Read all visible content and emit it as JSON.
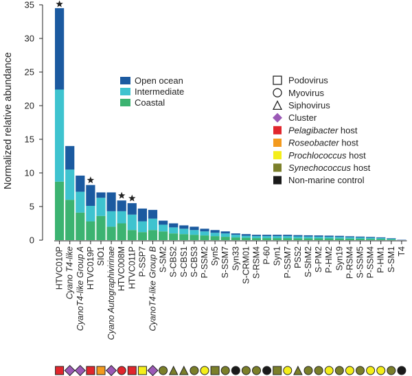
{
  "chart_data": {
    "type": "bar",
    "stacked": true,
    "title": "",
    "xlabel": "",
    "ylabel": "Normalized relative abundance",
    "ylim": [
      0,
      35
    ],
    "yticks": [
      0,
      5,
      10,
      15,
      20,
      25,
      30,
      35
    ],
    "grid": false,
    "legend_position": "top-center",
    "categories": [
      {
        "text": "HTVC010P",
        "italic": false
      },
      {
        "text": "Cyano T4-like",
        "italic": true
      },
      {
        "text": "CyanoT4-like Group A",
        "italic": true
      },
      {
        "text": "HTVC019P",
        "italic": false
      },
      {
        "text": "SIO1",
        "italic": false
      },
      {
        "text": "Cyano Autographivirinae",
        "italic": true
      },
      {
        "text": "HTVC008M",
        "italic": false
      },
      {
        "text": "HTVC011P",
        "italic": false
      },
      {
        "text": "P-SSP7",
        "italic": false
      },
      {
        "text": "CyanoT4-like Group B",
        "italic": true
      },
      {
        "text": "S-SM2",
        "italic": false
      },
      {
        "text": "S-CBS2",
        "italic": false
      },
      {
        "text": "S-CBS1",
        "italic": false
      },
      {
        "text": "S-CBS3",
        "italic": false
      },
      {
        "text": "P-SSM2",
        "italic": false
      },
      {
        "text": "Syn5",
        "italic": false
      },
      {
        "text": "S-SSM7",
        "italic": false
      },
      {
        "text": "Syn33",
        "italic": false
      },
      {
        "text": "S-CRM01",
        "italic": false
      },
      {
        "text": "S-RSM4",
        "italic": false
      },
      {
        "text": "P-60",
        "italic": false
      },
      {
        "text": "Syn1",
        "italic": false
      },
      {
        "text": "P-SSM7",
        "italic": false
      },
      {
        "text": "PSS2",
        "italic": false
      },
      {
        "text": "S-ShM2",
        "italic": false
      },
      {
        "text": "S-PM2",
        "italic": false
      },
      {
        "text": "P-HM2",
        "italic": false
      },
      {
        "text": "Syn19",
        "italic": false
      },
      {
        "text": "P-RSM4",
        "italic": false
      },
      {
        "text": "S-SSM5",
        "italic": false
      },
      {
        "text": "P-SSM4",
        "italic": false
      },
      {
        "text": "P-HM1",
        "italic": false
      },
      {
        "text": "S-SM1",
        "italic": false
      },
      {
        "text": "T4",
        "italic": false
      }
    ],
    "series": [
      {
        "name": "Coastal",
        "color": "#3cb371",
        "values": [
          8.7,
          6.0,
          4.1,
          2.8,
          3.6,
          2.0,
          2.5,
          1.5,
          1.2,
          1.5,
          1.3,
          1.0,
          0.9,
          0.8,
          0.7,
          0.6,
          0.5,
          0.4,
          0.35,
          0.3,
          0.3,
          0.3,
          0.3,
          0.28,
          0.27,
          0.26,
          0.25,
          0.24,
          0.22,
          0.2,
          0.18,
          0.16,
          0.1,
          0.0
        ]
      },
      {
        "name": "Intermediate",
        "color": "#3ec3cf",
        "values": [
          13.7,
          4.5,
          3.1,
          2.3,
          2.7,
          2.3,
          1.8,
          2.3,
          1.6,
          1.7,
          1.0,
          0.9,
          0.8,
          0.7,
          0.6,
          0.5,
          0.5,
          0.4,
          0.3,
          0.3,
          0.3,
          0.3,
          0.3,
          0.28,
          0.27,
          0.26,
          0.25,
          0.24,
          0.22,
          0.2,
          0.18,
          0.16,
          0.1,
          0.0
        ]
      },
      {
        "name": "Open ocean",
        "color": "#1b5aa0",
        "values": [
          12.1,
          3.5,
          2.4,
          3.1,
          0.8,
          2.8,
          1.6,
          1.7,
          1.9,
          1.3,
          0.6,
          0.6,
          0.5,
          0.5,
          0.4,
          0.4,
          0.3,
          0.2,
          0.25,
          0.2,
          0.2,
          0.2,
          0.2,
          0.19,
          0.18,
          0.18,
          0.17,
          0.16,
          0.14,
          0.13,
          0.12,
          0.1,
          0.08,
          0.05
        ]
      }
    ],
    "stars_on": [
      0,
      3,
      6,
      7
    ],
    "bottom_markers": [
      {
        "shape": "square",
        "color": "#e1262d"
      },
      {
        "shape": "diamond",
        "color": "#9b59b6"
      },
      {
        "shape": "diamond",
        "color": "#9b59b6"
      },
      {
        "shape": "square",
        "color": "#e1262d"
      },
      {
        "shape": "square",
        "color": "#f39a1e"
      },
      {
        "shape": "diamond",
        "color": "#9b59b6"
      },
      {
        "shape": "circle",
        "color": "#e1262d"
      },
      {
        "shape": "square",
        "color": "#e1262d"
      },
      {
        "shape": "square",
        "color": "#f4ee1a"
      },
      {
        "shape": "diamond",
        "color": "#9b59b6"
      },
      {
        "shape": "circle",
        "color": "#7b7f2a"
      },
      {
        "shape": "triangle",
        "color": "#7b7f2a"
      },
      {
        "shape": "triangle",
        "color": "#7b7f2a"
      },
      {
        "shape": "circle",
        "color": "#7b7f2a"
      },
      {
        "shape": "circle",
        "color": "#f4ee1a"
      },
      {
        "shape": "square",
        "color": "#7b7f2a"
      },
      {
        "shape": "circle",
        "color": "#7b7f2a"
      },
      {
        "shape": "circle",
        "color": "#1a1a1a"
      },
      {
        "shape": "circle",
        "color": "#7b7f2a"
      },
      {
        "shape": "circle",
        "color": "#7b7f2a"
      },
      {
        "shape": "circle",
        "color": "#1a1a1a"
      },
      {
        "shape": "square",
        "color": "#7b7f2a"
      },
      {
        "shape": "circle",
        "color": "#f4ee1a"
      },
      {
        "shape": "triangle",
        "color": "#7b7f2a"
      },
      {
        "shape": "circle",
        "color": "#7b7f2a"
      },
      {
        "shape": "circle",
        "color": "#7b7f2a"
      },
      {
        "shape": "circle",
        "color": "#f4ee1a"
      },
      {
        "shape": "circle",
        "color": "#7b7f2a"
      },
      {
        "shape": "circle",
        "color": "#f4ee1a"
      },
      {
        "shape": "circle",
        "color": "#7b7f2a"
      },
      {
        "shape": "circle",
        "color": "#f4ee1a"
      },
      {
        "shape": "circle",
        "color": "#f4ee1a"
      },
      {
        "shape": "circle",
        "color": "#7b7f2a"
      },
      {
        "shape": "circle",
        "color": "#1a1a1a"
      }
    ],
    "legend_series": [
      {
        "label": "Open ocean",
        "color": "#1b5aa0"
      },
      {
        "label": "Intermediate",
        "color": "#3ec3cf"
      },
      {
        "label": "Coastal",
        "color": "#3cb371"
      }
    ],
    "legend_markers": [
      {
        "icon": "square-outline",
        "parts": [
          {
            "text": "Podovirus",
            "italic": false
          }
        ]
      },
      {
        "icon": "circle-outline",
        "parts": [
          {
            "text": "Myovirus",
            "italic": false
          }
        ]
      },
      {
        "icon": "triangle-outline",
        "parts": [
          {
            "text": "Siphovirus",
            "italic": false
          }
        ]
      },
      {
        "icon": "diamond-filled",
        "color": "#9b59b6",
        "parts": [
          {
            "text": "Cluster",
            "italic": false
          }
        ]
      },
      {
        "icon": "square-filled",
        "color": "#e1262d",
        "parts": [
          {
            "text": "Pelagibacter",
            "italic": true
          },
          {
            "text": " host",
            "italic": false
          }
        ]
      },
      {
        "icon": "square-filled",
        "color": "#f39a1e",
        "parts": [
          {
            "text": "Roseobacter",
            "italic": true
          },
          {
            "text": " host",
            "italic": false
          }
        ]
      },
      {
        "icon": "square-filled",
        "color": "#f4ee1a",
        "parts": [
          {
            "text": "Prochlococcus",
            "italic": true
          },
          {
            "text": " host",
            "italic": false
          }
        ]
      },
      {
        "icon": "square-filled",
        "color": "#7b7f2a",
        "parts": [
          {
            "text": "Synechococcus",
            "italic": true
          },
          {
            "text": " host",
            "italic": false
          }
        ]
      },
      {
        "icon": "square-filled",
        "color": "#1a1a1a",
        "parts": [
          {
            "text": "Non-marine control",
            "italic": false
          }
        ]
      }
    ]
  }
}
